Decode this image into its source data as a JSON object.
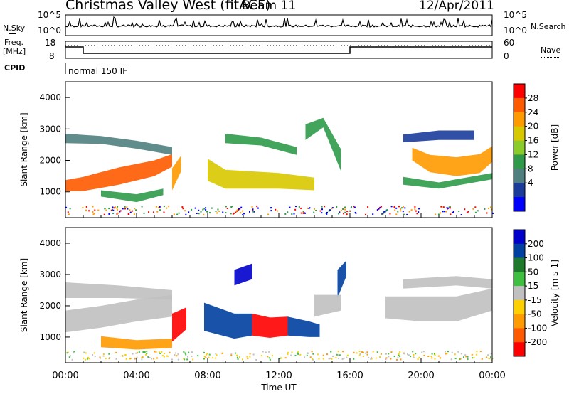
{
  "header": {
    "title": "Christmas Valley West (fitACF)",
    "beam": "Beam 11",
    "date": "12/Apr/2011"
  },
  "aux": {
    "nsky_label": "N.Sky",
    "nsky_ticks": [
      "10^5",
      "10^0"
    ],
    "nsearch_label": "N.Search",
    "freq_label": "Freq.",
    "freq_unit": "[MHz]",
    "freq_ticks": [
      "18",
      "8"
    ],
    "nave_label": "Nave",
    "nave_ticks": [
      "60",
      "0"
    ],
    "cpid_label": "CPID",
    "cpid_mode": "normal 150 IF"
  },
  "axes": {
    "xlabel": "Time UT",
    "xticks": [
      "00:00",
      "04:00",
      "08:00",
      "12:00",
      "16:00",
      "20:00",
      "00:00"
    ],
    "ylabel": "Slant Range [km]",
    "yticks": [
      "4000",
      "3000",
      "2000",
      "1000"
    ]
  },
  "power_scale": {
    "label": "Power [dB]",
    "ticks": [
      "28",
      "24",
      "20",
      "16",
      "12",
      "8",
      "4"
    ],
    "colors": [
      "#ff0000",
      "#ff5a00",
      "#ff9a00",
      "#d8c800",
      "#8ccc2a",
      "#2f9a4a",
      "#4f7f7f",
      "#1c3c9c",
      "#0000ff"
    ]
  },
  "velocity_scale": {
    "label": "Velocity [m s-1]",
    "ticks": [
      "200",
      "100",
      "50",
      "15",
      "-15",
      "-50",
      "-100",
      "-200"
    ],
    "colors": [
      "#0000cc",
      "#0040a0",
      "#1c7a2a",
      "#3fbf3f",
      "#c0c0c0",
      "#ffd000",
      "#ff9a00",
      "#ff5a00",
      "#ff0000"
    ]
  },
  "chart_data": [
    {
      "type": "heatmap",
      "name": "power",
      "ylabel": "Slant Range [km]",
      "xlabel": "Time UT",
      "xlim": [
        0,
        24
      ],
      "ylim": [
        180,
        4500
      ],
      "colorbar": "Power [dB]",
      "bands": [
        {
          "x": [
            0.0,
            1.0,
            3.0,
            5.0,
            6.0
          ],
          "y": [
            1200,
            1250,
            1500,
            1750,
            2000
          ],
          "h": [
            350,
            450,
            550,
            500,
            400
          ],
          "value": 26
        },
        {
          "x": [
            0.0,
            2.0,
            4.0,
            6.0
          ],
          "y": [
            2700,
            2650,
            2500,
            2300
          ],
          "h": [
            300,
            250,
            250,
            250
          ],
          "value": 10
        },
        {
          "x": [
            2.0,
            4.0,
            5.5
          ],
          "y": [
            950,
            800,
            1000
          ],
          "h": [
            200,
            250,
            200
          ],
          "value": 14
        },
        {
          "x": [
            6.0,
            6.5
          ],
          "y": [
            1400,
            1900
          ],
          "h": [
            700,
            500
          ],
          "value": 22
        },
        {
          "x": [
            8.0,
            9.0,
            12.0,
            14.0
          ],
          "y": [
            1700,
            1400,
            1350,
            1250
          ],
          "h": [
            700,
            600,
            500,
            400
          ],
          "value": 20
        },
        {
          "x": [
            9.0,
            11.0,
            13.0
          ],
          "y": [
            2700,
            2600,
            2300
          ],
          "h": [
            300,
            250,
            250
          ],
          "value": 12
        },
        {
          "x": [
            13.5,
            14.5,
            15.5
          ],
          "y": [
            2900,
            3200,
            2000
          ],
          "h": [
            500,
            300,
            700
          ],
          "value": 12
        },
        {
          "x": [
            19.5,
            20.5,
            22.0,
            23.3,
            24.0
          ],
          "y": [
            2200,
            1900,
            1800,
            1900,
            2200
          ],
          "h": [
            400,
            550,
            600,
            600,
            500
          ],
          "value": 22
        },
        {
          "x": [
            19.0,
            21.0,
            24.0
          ],
          "y": [
            1350,
            1200,
            1500
          ],
          "h": [
            250,
            200,
            200
          ],
          "value": 12
        },
        {
          "x": [
            19.0,
            21.0,
            23.0
          ],
          "y": [
            2700,
            2800,
            2800
          ],
          "h": [
            250,
            300,
            300
          ],
          "value": 8
        }
      ]
    },
    {
      "type": "heatmap",
      "name": "velocity",
      "ylabel": "Slant Range [km]",
      "xlabel": "Time UT",
      "xlim": [
        0,
        24
      ],
      "ylim": [
        180,
        4500
      ],
      "colorbar": "Velocity [m s-1]",
      "bands": [
        {
          "x": [
            0.0,
            2.0,
            4.0,
            6.0
          ],
          "y": [
            1500,
            1650,
            1850,
            2000
          ],
          "h": [
            700,
            700,
            700,
            700
          ],
          "value": 0
        },
        {
          "x": [
            0.0,
            3.0,
            6.0
          ],
          "y": [
            2500,
            2450,
            2350
          ],
          "h": [
            500,
            400,
            300
          ],
          "value": 0
        },
        {
          "x": [
            2.0,
            4.0,
            6.0
          ],
          "y": [
            850,
            750,
            800
          ],
          "h": [
            350,
            300,
            300
          ],
          "value": -60
        },
        {
          "x": [
            6.0,
            6.8
          ],
          "y": [
            1300,
            1600
          ],
          "h": [
            900,
            700
          ],
          "value": -220
        },
        {
          "x": [
            7.8,
            9.5,
            10.5
          ],
          "y": [
            1650,
            1350,
            1400
          ],
          "h": [
            900,
            800,
            700
          ],
          "value": 150
        },
        {
          "x": [
            10.5,
            11.5,
            12.5
          ],
          "y": [
            1400,
            1300,
            1350
          ],
          "h": [
            700,
            650,
            600
          ],
          "value": -220
        },
        {
          "x": [
            12.5,
            13.7,
            14.3
          ],
          "y": [
            1350,
            1250,
            1200
          ],
          "h": [
            600,
            500,
            400
          ],
          "value": 120
        },
        {
          "x": [
            9.5,
            10.5
          ],
          "y": [
            2900,
            3100
          ],
          "h": [
            500,
            500
          ],
          "value": 200
        },
        {
          "x": [
            15.3,
            15.8
          ],
          "y": [
            2700,
            3200
          ],
          "h": [
            900,
            500
          ],
          "value": 180
        },
        {
          "x": [
            14.0,
            15.5
          ],
          "y": [
            2000,
            2100
          ],
          "h": [
            700,
            500
          ],
          "value": 0
        },
        {
          "x": [
            18.0,
            20.0,
            22.0,
            24.0
          ],
          "y": [
            1950,
            1900,
            1900,
            2200
          ],
          "h": [
            700,
            800,
            800,
            700
          ],
          "value": 0
        },
        {
          "x": [
            19.0,
            22.0,
            24.0
          ],
          "y": [
            2700,
            2800,
            2700
          ],
          "h": [
            300,
            300,
            300
          ],
          "value": 0
        }
      ]
    }
  ]
}
